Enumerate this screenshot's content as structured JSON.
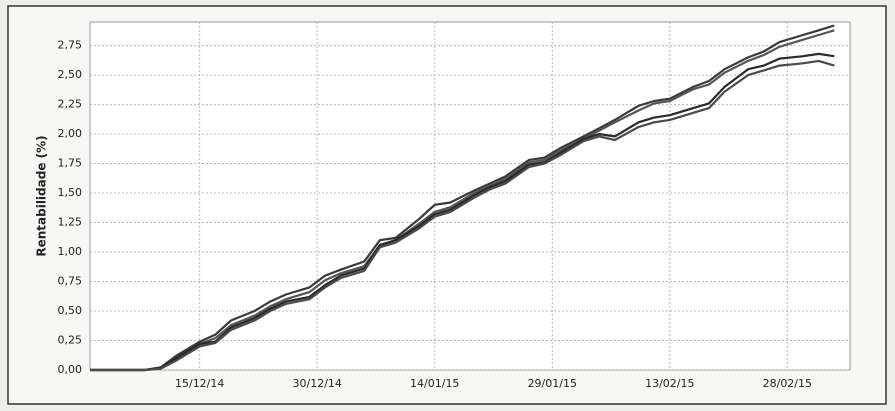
{
  "chart_data": {
    "type": "line",
    "y_label": "Rentabilidade (%)",
    "x": [
      "2014-12-01",
      "2014-12-08",
      "2014-12-10",
      "2014-12-12",
      "2014-12-15",
      "2014-12-17",
      "2014-12-19",
      "2014-12-22",
      "2014-12-24",
      "2014-12-26",
      "2014-12-29",
      "2014-12-31",
      "2015-01-02",
      "2015-01-05",
      "2015-01-07",
      "2015-01-09",
      "2015-01-12",
      "2015-01-14",
      "2015-01-16",
      "2015-01-19",
      "2015-01-21",
      "2015-01-23",
      "2015-01-26",
      "2015-01-28",
      "2015-01-30",
      "2015-02-02",
      "2015-02-04",
      "2015-02-06",
      "2015-02-09",
      "2015-02-11",
      "2015-02-13",
      "2015-02-16",
      "2015-02-18",
      "2015-02-20",
      "2015-02-23",
      "2015-02-25",
      "2015-02-27",
      "2015-03-02",
      "2015-03-04",
      "2015-03-06"
    ],
    "series": [
      {
        "color": "#3a3a3a",
        "values": [
          0,
          0,
          0.02,
          0.12,
          0.24,
          0.3,
          0.42,
          0.5,
          0.58,
          0.64,
          0.7,
          0.8,
          0.85,
          0.92,
          1.1,
          1.12,
          1.28,
          1.4,
          1.42,
          1.52,
          1.58,
          1.64,
          1.78,
          1.8,
          1.88,
          1.98,
          2.05,
          2.12,
          2.24,
          2.28,
          2.3,
          2.4,
          2.45,
          2.55,
          2.65,
          2.7,
          2.78,
          2.84,
          2.88,
          2.92
        ]
      },
      {
        "color": "#555555",
        "values": [
          0,
          0,
          0.02,
          0.1,
          0.22,
          0.27,
          0.38,
          0.46,
          0.54,
          0.6,
          0.66,
          0.76,
          0.82,
          0.88,
          1.06,
          1.1,
          1.24,
          1.34,
          1.38,
          1.5,
          1.56,
          1.62,
          1.76,
          1.78,
          1.86,
          1.96,
          2.03,
          2.1,
          2.2,
          2.26,
          2.28,
          2.38,
          2.42,
          2.52,
          2.62,
          2.67,
          2.74,
          2.8,
          2.84,
          2.88
        ]
      },
      {
        "color": "#2a2a2a",
        "values": [
          0,
          0,
          0.02,
          0.1,
          0.22,
          0.24,
          0.36,
          0.44,
          0.52,
          0.58,
          0.62,
          0.72,
          0.8,
          0.86,
          1.06,
          1.1,
          1.22,
          1.32,
          1.36,
          1.48,
          1.55,
          1.6,
          1.74,
          1.76,
          1.84,
          1.96,
          2.0,
          1.98,
          2.1,
          2.14,
          2.16,
          2.22,
          2.26,
          2.4,
          2.55,
          2.58,
          2.64,
          2.66,
          2.68,
          2.66
        ]
      },
      {
        "color": "#4a4a4a",
        "values": [
          0,
          0,
          0.01,
          0.08,
          0.2,
          0.23,
          0.34,
          0.42,
          0.5,
          0.56,
          0.6,
          0.7,
          0.78,
          0.84,
          1.04,
          1.08,
          1.2,
          1.3,
          1.34,
          1.46,
          1.53,
          1.58,
          1.72,
          1.75,
          1.82,
          1.94,
          1.98,
          1.95,
          2.06,
          2.1,
          2.12,
          2.18,
          2.22,
          2.36,
          2.5,
          2.54,
          2.58,
          2.6,
          2.62,
          2.58
        ]
      }
    ],
    "xlim": [
      "2014-12-01",
      "2015-03-08"
    ],
    "xticks": [
      {
        "value": "2014-12-15",
        "label": "15/12/14"
      },
      {
        "value": "2014-12-30",
        "label": "30/12/14"
      },
      {
        "value": "2015-01-14",
        "label": "14/01/15"
      },
      {
        "value": "2015-01-29",
        "label": "29/01/15"
      },
      {
        "value": "2015-02-13",
        "label": "13/02/15"
      },
      {
        "value": "2015-02-28",
        "label": "28/02/15"
      }
    ],
    "ylim": [
      0,
      2.95
    ],
    "yticks": [
      {
        "value": 0,
        "label": "0,00"
      },
      {
        "value": 0.25,
        "label": "0,25"
      },
      {
        "value": 0.5,
        "label": "0,50"
      },
      {
        "value": 0.75,
        "label": "0,75"
      },
      {
        "value": 1,
        "label": "1,00"
      },
      {
        "value": 1.25,
        "label": "1,25"
      },
      {
        "value": 1.5,
        "label": "1,50"
      },
      {
        "value": 1.75,
        "label": "1,75"
      },
      {
        "value": 2,
        "label": "2,00"
      },
      {
        "value": 2.25,
        "label": "2,25"
      },
      {
        "value": 2.5,
        "label": "2,50"
      },
      {
        "value": 2.75,
        "label": "2,75"
      }
    ],
    "grid": true
  }
}
